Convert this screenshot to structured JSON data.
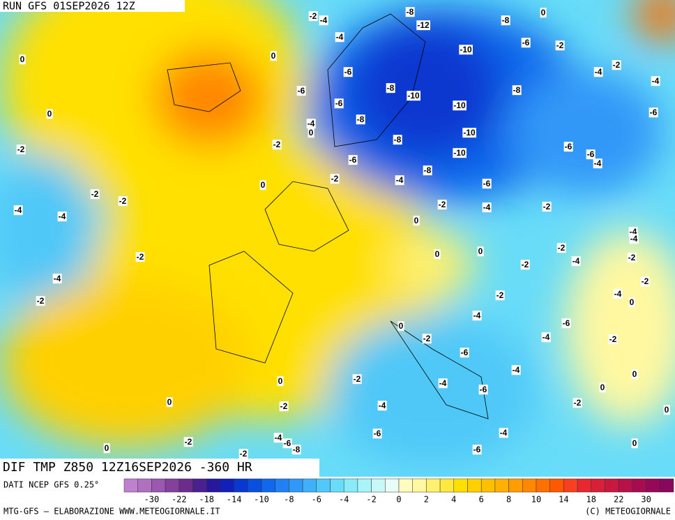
{
  "header": {
    "run": "RUN GFS 01SEP2026 12Z",
    "title": "DIF TMP Z850 12Z16SEP2026 -360 HR"
  },
  "map_labels": [
    0,
    0,
    0,
    -2,
    -2,
    -4,
    -4,
    -8,
    -12,
    -8,
    0,
    -6,
    -2,
    -10,
    -6,
    -6,
    -8,
    -10,
    -8,
    -4,
    -2,
    -4,
    -6,
    -10,
    -6,
    -4,
    -8,
    0,
    -2,
    -10,
    -8,
    -6,
    -6,
    -10,
    -6,
    -4,
    -8,
    -2,
    -4,
    -6,
    0,
    -2,
    -2,
    -4,
    -4,
    -2,
    -4,
    -2,
    0,
    -4,
    -4,
    -2,
    -2,
    0,
    0,
    -2,
    -4,
    -2,
    -4,
    -2,
    -2,
    -4,
    -2,
    0,
    -4,
    -6,
    0,
    -4,
    -2,
    -2,
    -6,
    -4,
    0,
    -2,
    0,
    -4,
    -6,
    0,
    0,
    -2,
    -4,
    -2,
    0,
    -4,
    -6,
    -6,
    -4,
    -2,
    -8,
    0,
    -2,
    0,
    -6
  ],
  "legend": {
    "source": "DATI NCEP GFS 0.25°",
    "colors": [
      "#c080d0",
      "#b070c0",
      "#9a58b0",
      "#84409c",
      "#6c2c8c",
      "#4a2090",
      "#2818a0",
      "#1020b8",
      "#0838d0",
      "#0850e0",
      "#1068ec",
      "#2080f4",
      "#3098f8",
      "#40b0f8",
      "#50c8f8",
      "#68dcf8",
      "#88ecf8",
      "#a8f4f8",
      "#c8f8f8",
      "#e8fcf8",
      "#fffcc0",
      "#fff8a0",
      "#fff070",
      "#ffe840",
      "#ffe000",
      "#ffd000",
      "#ffc000",
      "#ffb000",
      "#ff9c00",
      "#ff8800",
      "#ff7000",
      "#ff5800",
      "#f84020",
      "#e82830",
      "#d82038",
      "#c81840",
      "#b81048",
      "#a80c50",
      "#980858",
      "#880860"
    ],
    "ticks": [
      -30,
      -22,
      -18,
      -14,
      -10,
      -8,
      -6,
      -4,
      -2,
      0,
      2,
      4,
      6,
      8,
      10,
      14,
      18,
      22,
      30
    ]
  },
  "footer": {
    "left": "MTG-GFS — ELABORAZIONE WWW.METEOGIORNALE.IT",
    "right": "(C) METEOGIORNALE"
  }
}
